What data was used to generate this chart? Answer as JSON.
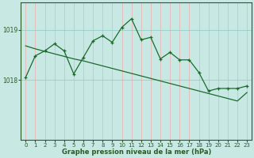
{
  "xlabel": "Graphe pression niveau de la mer (hPa)",
  "bg_color": "#c8e8e4",
  "grid_color_v": "#e8b8b8",
  "grid_color_h": "#98ccc8",
  "line_color": "#1a6b2a",
  "spine_color": "#2a5a2a",
  "x_ticks": [
    0,
    1,
    2,
    3,
    4,
    5,
    6,
    7,
    8,
    9,
    10,
    11,
    12,
    13,
    14,
    15,
    16,
    17,
    18,
    19,
    20,
    21,
    22,
    23
  ],
  "y_ticks": [
    1018,
    1019
  ],
  "ylim": [
    1016.8,
    1019.55
  ],
  "xlim": [
    -0.5,
    23.5
  ],
  "main_line": [
    1018.05,
    1018.48,
    1018.58,
    1018.72,
    1018.58,
    1018.12,
    1018.45,
    1018.78,
    1018.88,
    1018.75,
    1019.05,
    1019.22,
    1018.8,
    1018.85,
    1018.42,
    1018.55,
    1018.4,
    1018.4,
    1018.15,
    1017.78,
    1017.83,
    1017.83,
    1017.83,
    1017.88
  ],
  "smooth_line": [
    1018.68,
    1018.62,
    1018.57,
    1018.52,
    1018.47,
    1018.42,
    1018.38,
    1018.33,
    1018.28,
    1018.23,
    1018.18,
    1018.13,
    1018.08,
    1018.03,
    1017.98,
    1017.93,
    1017.88,
    1017.83,
    1017.78,
    1017.73,
    1017.68,
    1017.63,
    1017.58,
    1017.75
  ]
}
